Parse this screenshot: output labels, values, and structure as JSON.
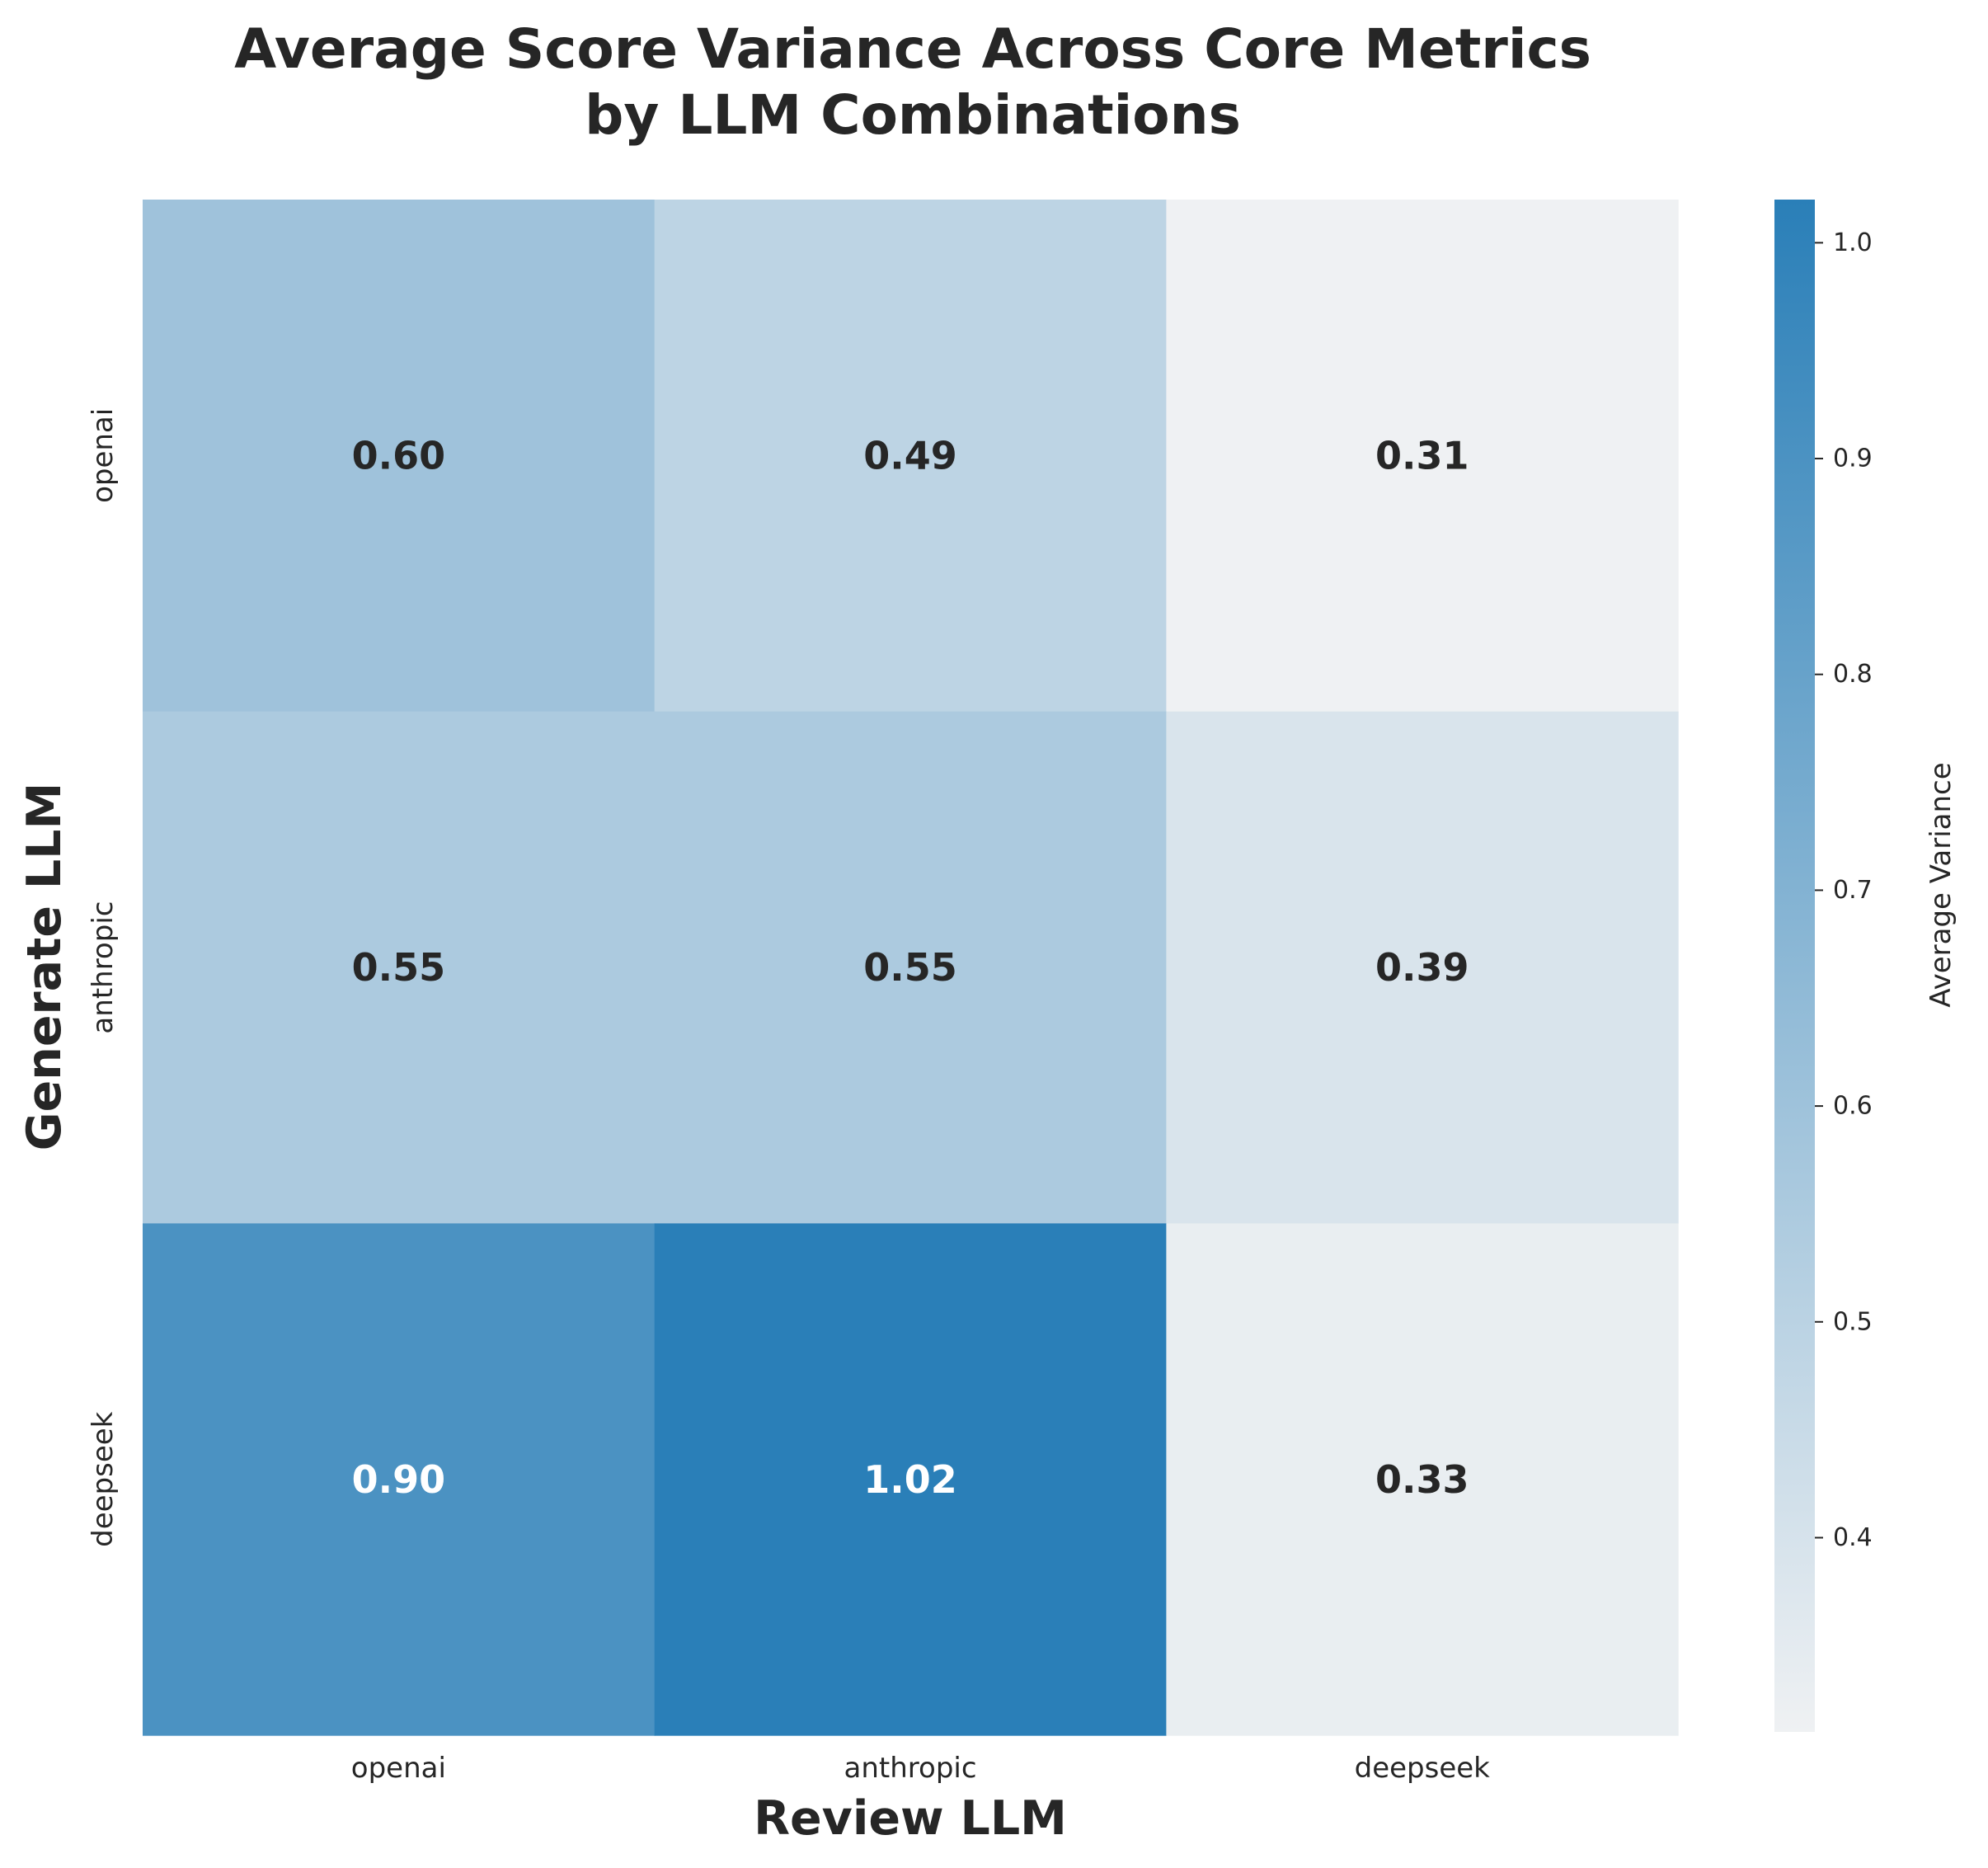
{
  "chart_data": {
    "type": "heatmap",
    "title": [
      "Average Score Variance Across Core Metrics",
      "by LLM Combinations"
    ],
    "xlabel": "Review LLM",
    "ylabel": "Generate LLM",
    "x_categories": [
      "openai",
      "anthropic",
      "deepseek"
    ],
    "y_categories": [
      "openai",
      "anthropic",
      "deepseek"
    ],
    "values": [
      [
        0.6,
        0.49,
        0.31
      ],
      [
        0.55,
        0.55,
        0.39
      ],
      [
        0.9,
        1.02,
        0.33
      ]
    ],
    "value_labels": [
      [
        "0.60",
        "0.49",
        "0.31"
      ],
      [
        "0.55",
        "0.55",
        "0.39"
      ],
      [
        "0.90",
        "1.02",
        "0.33"
      ]
    ],
    "colorbar": {
      "label": "Average Variance",
      "range": [
        0.31,
        1.02
      ],
      "ticks": [
        0.4,
        0.5,
        0.6,
        0.7,
        0.8,
        0.9,
        1.0
      ],
      "tick_labels": [
        "0.4",
        "0.5",
        "0.6",
        "0.7",
        "0.8",
        "0.9",
        "1.0"
      ],
      "color_low": "#eff1f3",
      "color_high": "#2a7fb8"
    },
    "annotation_colors": {
      "dark": "#262626",
      "light": "#ffffff"
    },
    "grid": false
  }
}
